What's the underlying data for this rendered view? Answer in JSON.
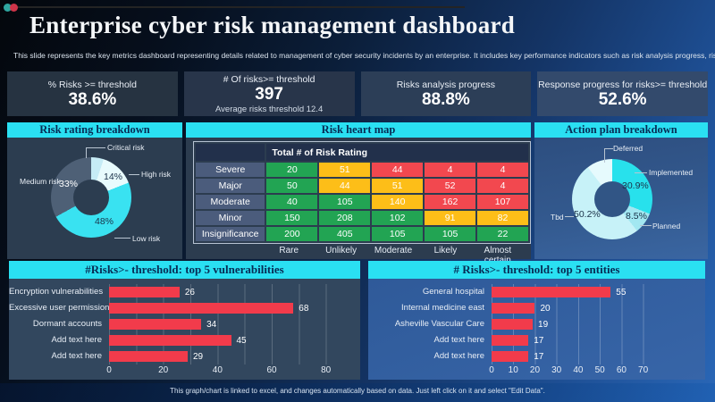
{
  "header": {
    "title": "Enterprise cyber risk management dashboard",
    "subtitle": "This slide represents the key metrics dashboard representing details related to management  of cyber security incidents by an enterprise. It includes key performance indicators such as risk analysis progress, risk rating breakdown etc."
  },
  "kpis": [
    {
      "label": "% Risks >= threshold",
      "value": "38.6%"
    },
    {
      "label": "# Of risks>= threshold",
      "value": "397",
      "caption": "Average risks threshold 12.4"
    },
    {
      "label": "Risks analysis progress",
      "value": "88.8%"
    },
    {
      "label": "Response progress for risks>= threshold",
      "value": "52.6%"
    }
  ],
  "section_titles": {
    "risk_rating": "Risk rating breakdown",
    "heat_map": "Risk heart map",
    "action_plan": "Action plan breakdown"
  },
  "colors": {
    "cyan": "#2ae0f2",
    "green": "#22a453",
    "yellow": "#fdbe18",
    "red": "#f2484f",
    "bar_red": "#f23b4b"
  },
  "chart_data": [
    {
      "id": "risk_rating_breakdown",
      "type": "donut",
      "title": "Risk rating breakdown",
      "segments": [
        {
          "label": "Critical risk",
          "value": 5,
          "color": "#c6ecf6",
          "pct_label": ""
        },
        {
          "label": "High risk",
          "value": 14,
          "color": "#e8fbfd",
          "pct_label": "14%"
        },
        {
          "label": "Low risk",
          "value": 48,
          "color": "#39e2f1",
          "pct_label": "48%"
        },
        {
          "label": "Medium risk",
          "value": 33,
          "color": "#4e6076",
          "pct_label": "33%"
        }
      ]
    },
    {
      "id": "risk_heat_map",
      "type": "heatmap",
      "title": "Risk heart map",
      "value_header": "Total # of Risk Rating",
      "row_labels": [
        "Severe",
        "Major",
        "Moderate",
        "Minor",
        "Insignificance"
      ],
      "col_labels": [
        "Rare",
        "Unlikely",
        "Moderate",
        "Likely",
        "Almost certain"
      ],
      "values": [
        [
          20,
          51,
          44,
          4,
          4
        ],
        [
          50,
          44,
          51,
          52,
          4
        ],
        [
          40,
          105,
          140,
          162,
          107
        ],
        [
          150,
          208,
          102,
          91,
          82
        ],
        [
          200,
          405,
          105,
          105,
          22
        ]
      ],
      "cell_colors": [
        [
          "g",
          "y",
          "r",
          "r",
          "r"
        ],
        [
          "g",
          "y",
          "y",
          "r",
          "r"
        ],
        [
          "g",
          "g",
          "y",
          "r",
          "r"
        ],
        [
          "g",
          "g",
          "g",
          "y",
          "y"
        ],
        [
          "g",
          "g",
          "g",
          "g",
          "g"
        ]
      ]
    },
    {
      "id": "action_plan_breakdown",
      "type": "donut",
      "title": "Action plan breakdown",
      "segments": [
        {
          "label": "Implemented",
          "value": 30.9,
          "color": "#28e1ec",
          "pct_label": "30.9%"
        },
        {
          "label": "Planned",
          "value": 8.5,
          "color": "#a2e7f1",
          "pct_label": "8.5%"
        },
        {
          "label": "Tbd",
          "value": 50.2,
          "color": "#c7f2f8",
          "pct_label": "50.2%"
        },
        {
          "label": "Deferred",
          "value": 10.4,
          "color": "#e6fafd",
          "pct_label": ""
        }
      ]
    },
    {
      "id": "top5_vulnerabilities",
      "type": "bar",
      "title": "#Risks>- threshold: top 5 vulnerabilities",
      "categories": [
        "Encryption vulnerabilities",
        "Excessive user permissions",
        "Dormant accounts",
        "Add text here",
        "Add text here"
      ],
      "values": [
        26,
        68,
        34,
        45,
        29
      ],
      "xlim": [
        0,
        90
      ],
      "ticks": [
        0,
        20,
        40,
        60,
        80
      ]
    },
    {
      "id": "top5_entities",
      "type": "bar",
      "title": "# Risks>- threshold: top 5 entities",
      "categories": [
        "General hospital",
        "Internal medicine east",
        "Asheville Vascular Care",
        "Add text here",
        "Add text here"
      ],
      "values": [
        55,
        20,
        19,
        17,
        17
      ],
      "xlim": [
        0,
        78
      ],
      "ticks": [
        0,
        10,
        20,
        30,
        40,
        50,
        60,
        70
      ]
    }
  ],
  "footer": {
    "text": "This graph/chart is linked to excel, and changes automatically based on data. Just left click on it and select \"Edit Data\"."
  }
}
